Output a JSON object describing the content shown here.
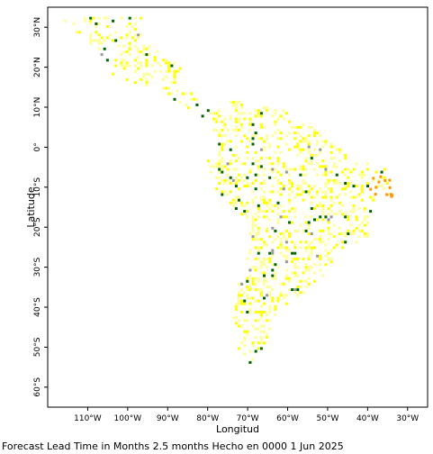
{
  "map": {
    "x_axis_title": "Longitud",
    "y_axis_title": "Latitude",
    "lon_range": [
      -120,
      -25
    ],
    "lat_range": [
      -65,
      35
    ],
    "lon_ticks": [
      {
        "value": -110,
        "label": "110°W"
      },
      {
        "value": -100,
        "label": "100°W"
      },
      {
        "value": -90,
        "label": "90°W"
      },
      {
        "value": -80,
        "label": "80°W"
      },
      {
        "value": -70,
        "label": "70°W"
      },
      {
        "value": -60,
        "label": "60°W"
      },
      {
        "value": -50,
        "label": "50°W"
      },
      {
        "value": -40,
        "label": "40°W"
      },
      {
        "value": -30,
        "label": "30°W"
      }
    ],
    "lat_ticks": [
      {
        "value": 30,
        "label": "30°N"
      },
      {
        "value": 20,
        "label": "20°N"
      },
      {
        "value": 10,
        "label": "10°N"
      },
      {
        "value": 0,
        "label": "0°"
      },
      {
        "value": -10,
        "label": "10°S"
      },
      {
        "value": -20,
        "label": "20°S"
      },
      {
        "value": -30,
        "label": "30°S"
      },
      {
        "value": -40,
        "label": "40°S"
      },
      {
        "value": -50,
        "label": "50°S"
      },
      {
        "value": -60,
        "label": "60°S"
      }
    ],
    "colors": {
      "yellow": "#ffff00",
      "pale_yellow": "#ffff99",
      "dark_green": "#006400",
      "gray": "#999999",
      "orange": "#ff9900",
      "frame": "#000000"
    }
  },
  "footer": {
    "caption": "Forecast Lead Time in Months 2.5 months Hecho en 0000 1 Jun 2025"
  }
}
